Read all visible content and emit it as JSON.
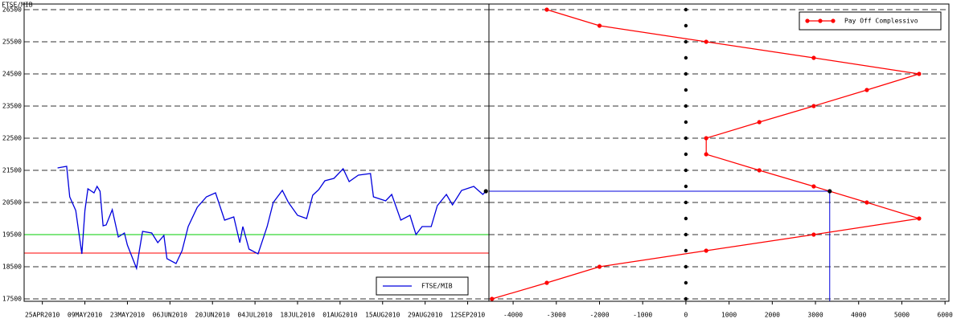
{
  "chart_data": [
    {
      "type": "line",
      "y_label": "FTSE/MIB",
      "x": [
        "2010-04-30",
        "2010-05-03",
        "2010-05-04",
        "2010-05-06",
        "2010-05-08",
        "2010-05-09",
        "2010-05-10",
        "2010-05-12",
        "2010-05-13",
        "2010-05-14",
        "2010-05-15",
        "2010-05-16",
        "2010-05-18",
        "2010-05-20",
        "2010-05-22",
        "2010-05-23",
        "2010-05-26",
        "2010-05-27",
        "2010-05-28",
        "2010-05-31",
        "2010-06-02",
        "2010-06-04",
        "2010-06-05",
        "2010-06-08",
        "2010-06-10",
        "2010-06-12",
        "2010-06-15",
        "2010-06-18",
        "2010-06-21",
        "2010-06-24",
        "2010-06-27",
        "2010-06-29",
        "2010-06-30",
        "2010-07-02",
        "2010-07-05",
        "2010-07-08",
        "2010-07-10",
        "2010-07-13",
        "2010-07-15",
        "2010-07-18",
        "2010-07-21",
        "2010-07-23",
        "2010-07-25",
        "2010-07-27",
        "2010-07-30",
        "2010-08-02",
        "2010-08-04",
        "2010-08-07",
        "2010-08-11",
        "2010-08-12",
        "2010-08-16",
        "2010-08-18",
        "2010-08-21",
        "2010-08-24",
        "2010-08-26",
        "2010-08-28",
        "2010-08-31",
        "2010-09-02",
        "2010-09-05",
        "2010-09-07",
        "2010-09-10",
        "2010-09-14",
        "2010-09-17",
        "2010-09-18"
      ],
      "series": [
        {
          "name": "FTSE/MIB",
          "color": "#0000dd",
          "values": [
            21575,
            21625,
            20675,
            20250,
            18900,
            20250,
            20925,
            20800,
            21000,
            20850,
            19775,
            19800,
            20275,
            19425,
            19550,
            19175,
            18450,
            19050,
            19600,
            19550,
            19250,
            19475,
            18750,
            18600,
            19000,
            19750,
            20350,
            20675,
            20800,
            19950,
            20050,
            19250,
            19750,
            19050,
            18900,
            19750,
            20500,
            20875,
            20500,
            20100,
            20000,
            20725,
            20900,
            21175,
            21250,
            21550,
            21150,
            21350,
            21400,
            20675,
            20550,
            20750,
            19950,
            20100,
            19500,
            19750,
            19750,
            20400,
            20750,
            20425,
            20875,
            21000,
            20750,
            20850
          ]
        }
      ],
      "xlim": [
        "2010-04-19",
        "2010-09-19"
      ],
      "xticks": [
        {
          "value": "2010-04-25",
          "label": "25APR2010"
        },
        {
          "value": "2010-05-09",
          "label": "09MAY2010"
        },
        {
          "value": "2010-05-23",
          "label": "23MAY2010"
        },
        {
          "value": "2010-06-06",
          "label": "06JUN2010"
        },
        {
          "value": "2010-06-20",
          "label": "20JUN2010"
        },
        {
          "value": "2010-07-04",
          "label": "04JUL2010"
        },
        {
          "value": "2010-07-18",
          "label": "18JUL2010"
        },
        {
          "value": "2010-08-01",
          "label": "01AUG2010"
        },
        {
          "value": "2010-08-15",
          "label": "15AUG2010"
        },
        {
          "value": "2010-08-29",
          "label": "29AUG2010"
        },
        {
          "value": "2010-09-12",
          "label": "12SEP2010"
        }
      ],
      "ylim": [
        17425,
        26675
      ],
      "yticks": [
        17500,
        18500,
        19500,
        20500,
        21500,
        22500,
        23500,
        24500,
        25500,
        26500
      ],
      "grid": true,
      "hlines": [
        {
          "y": 19500,
          "color": "#00cc00"
        },
        {
          "y": 18925,
          "color": "#ff0000"
        }
      ],
      "legend": "bottom-right"
    },
    {
      "type": "line",
      "x": [
        -3220,
        -2000,
        470,
        2960,
        5400,
        4190,
        2960,
        1700,
        470,
        470,
        1700,
        2960,
        4190,
        5400,
        2960,
        470,
        -2000,
        -3220,
        -4490
      ],
      "series": [
        {
          "name": "Pay Off Complessivo",
          "color": "#ff0000",
          "values": [
            26500,
            26000,
            25500,
            25000,
            24500,
            24000,
            23500,
            23000,
            22500,
            22000,
            21500,
            21000,
            20500,
            20000,
            19500,
            19000,
            18500,
            18000,
            17500
          ]
        }
      ],
      "xlim": [
        -4560,
        6090
      ],
      "xticks": [
        -4000,
        -3000,
        -2000,
        -1000,
        0,
        1000,
        2000,
        3000,
        4000,
        5000,
        6000
      ],
      "ylim": [
        17425,
        26675
      ],
      "yticks": [
        17500,
        18500,
        19500,
        20500,
        21500,
        22500,
        23500,
        24500,
        25500,
        26500
      ],
      "grid": true,
      "reference_points": {
        "color": "#000000",
        "x": 0,
        "y": [
          17500,
          18000,
          18500,
          19000,
          19500,
          20000,
          20500,
          21000,
          21500,
          22000,
          22500,
          23000,
          23500,
          24000,
          24500,
          25000,
          25500,
          26000,
          26500
        ]
      },
      "current": {
        "x": 3330,
        "y": 20850,
        "color": "#0000dd"
      },
      "legend": "top-right"
    }
  ]
}
